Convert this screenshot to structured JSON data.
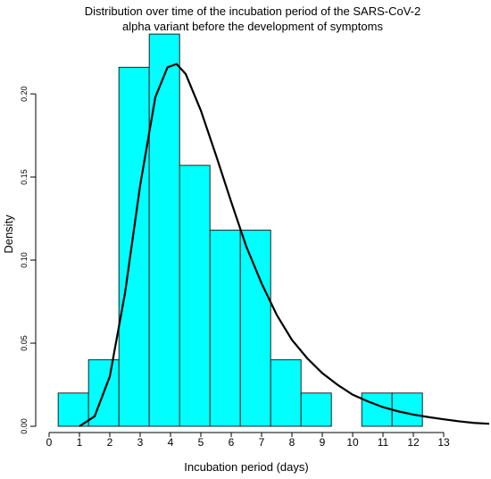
{
  "chart_data": {
    "type": "bar",
    "title": "Distribution over time of the incubation period of the SARS-CoV-2 alpha variant before the development of symptoms",
    "title_lines": [
      "Distribution over time of the incubation period of the SARS-CoV-2",
      "alpha variant before the development of symptoms"
    ],
    "xlabel": "Incubation period (days)",
    "ylabel": "Density",
    "xlim": [
      0,
      14.5
    ],
    "ylim": [
      0,
      0.235
    ],
    "x_ticks": [
      0,
      1,
      2,
      3,
      4,
      5,
      6,
      7,
      8,
      9,
      10,
      11,
      12,
      13
    ],
    "x_tick_labels": [
      "0",
      "1",
      "2",
      "3",
      "4",
      "5",
      "6",
      "7",
      "8",
      "9",
      "10",
      "11",
      "12",
      "13"
    ],
    "y_ticks": [
      0,
      0.05,
      0.1,
      0.15,
      0.2
    ],
    "y_tick_labels": [
      "0.00",
      "0.05",
      "0.10",
      "0.15",
      "0.20"
    ],
    "bins": [
      {
        "start": 0.3,
        "end": 1.3,
        "density": 0.02
      },
      {
        "start": 1.3,
        "end": 2.3,
        "density": 0.04
      },
      {
        "start": 2.3,
        "end": 3.3,
        "density": 0.216
      },
      {
        "start": 3.3,
        "end": 4.3,
        "density": 0.236
      },
      {
        "start": 4.3,
        "end": 5.3,
        "density": 0.157
      },
      {
        "start": 5.3,
        "end": 6.3,
        "density": 0.118
      },
      {
        "start": 6.3,
        "end": 7.3,
        "density": 0.118
      },
      {
        "start": 7.3,
        "end": 8.3,
        "density": 0.04
      },
      {
        "start": 8.3,
        "end": 9.3,
        "density": 0.02
      },
      {
        "start": 9.3,
        "end": 10.3,
        "density": 0
      },
      {
        "start": 10.3,
        "end": 11.3,
        "density": 0.02
      },
      {
        "start": 11.3,
        "end": 12.3,
        "density": 0.02
      }
    ],
    "density_curve": {
      "x": [
        1.0,
        1.5,
        2.0,
        2.5,
        3.0,
        3.5,
        3.9,
        4.2,
        4.5,
        5.0,
        5.5,
        6.0,
        6.5,
        7.0,
        7.5,
        8.0,
        8.5,
        9.0,
        9.5,
        10.0,
        10.5,
        11.0,
        11.5,
        12.0,
        12.5,
        13.0,
        13.5,
        14.0,
        14.5
      ],
      "y": [
        0.0,
        0.006,
        0.03,
        0.08,
        0.145,
        0.198,
        0.216,
        0.218,
        0.212,
        0.19,
        0.163,
        0.135,
        0.108,
        0.086,
        0.067,
        0.052,
        0.041,
        0.032,
        0.025,
        0.019,
        0.015,
        0.0115,
        0.009,
        0.007,
        0.0055,
        0.0042,
        0.003,
        0.002,
        0.0015
      ]
    },
    "bar_fill": "#00FFFF",
    "bar_stroke": "#222222",
    "curve_color": "#000000",
    "grid": false,
    "legend": "none"
  }
}
